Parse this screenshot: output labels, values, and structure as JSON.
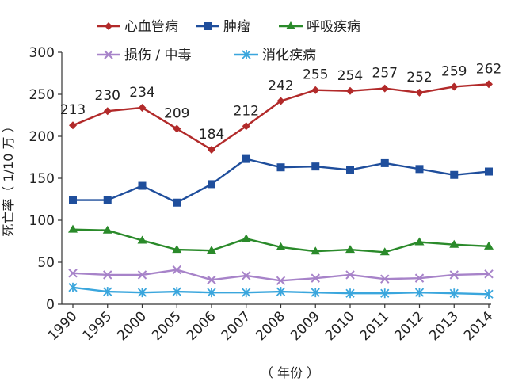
{
  "chart_data": {
    "type": "line",
    "title": "",
    "xlabel": "（ 年份 ）",
    "ylabel": "死亡率（ 1/10 万 ）",
    "ylim": [
      0,
      300
    ],
    "yticks": [
      "0",
      "50",
      "100",
      "150",
      "200",
      "250",
      "300"
    ],
    "categories": [
      "1990",
      "1995",
      "2000",
      "2005",
      "2006",
      "2007",
      "2008",
      "2009",
      "2010",
      "2011",
      "2012",
      "2013",
      "2014"
    ],
    "legend_position": "top",
    "series": [
      {
        "name": "心血管病",
        "color": "#b22a2a",
        "marker": "diamond",
        "values": [
          213,
          230,
          234,
          209,
          184,
          212,
          242,
          255,
          254,
          257,
          252,
          259,
          262
        ],
        "data_labels": [
          "213",
          "230",
          "234",
          "209",
          "184",
          "212",
          "242",
          "255",
          "254",
          "257",
          "252",
          "259",
          "262"
        ]
      },
      {
        "name": "肿瘤",
        "color": "#1f4e9c",
        "marker": "square",
        "values": [
          124,
          124,
          141,
          121,
          143,
          173,
          163,
          164,
          160,
          168,
          161,
          154,
          158
        ]
      },
      {
        "name": "呼吸疾病",
        "color": "#2a8a2a",
        "marker": "triangle",
        "values": [
          89,
          88,
          76,
          65,
          64,
          78,
          68,
          63,
          65,
          62,
          74,
          71,
          69
        ]
      },
      {
        "name": "损伤 / 中毒",
        "color": "#a783c9",
        "marker": "x",
        "values": [
          37,
          35,
          35,
          41,
          29,
          34,
          28,
          31,
          35,
          30,
          31,
          35,
          36
        ]
      },
      {
        "name": "消化疾病",
        "color": "#3aa6dd",
        "marker": "asterisk",
        "values": [
          20,
          15,
          14,
          15,
          14,
          14,
          15,
          14,
          13,
          13,
          14,
          13,
          12
        ]
      }
    ]
  }
}
